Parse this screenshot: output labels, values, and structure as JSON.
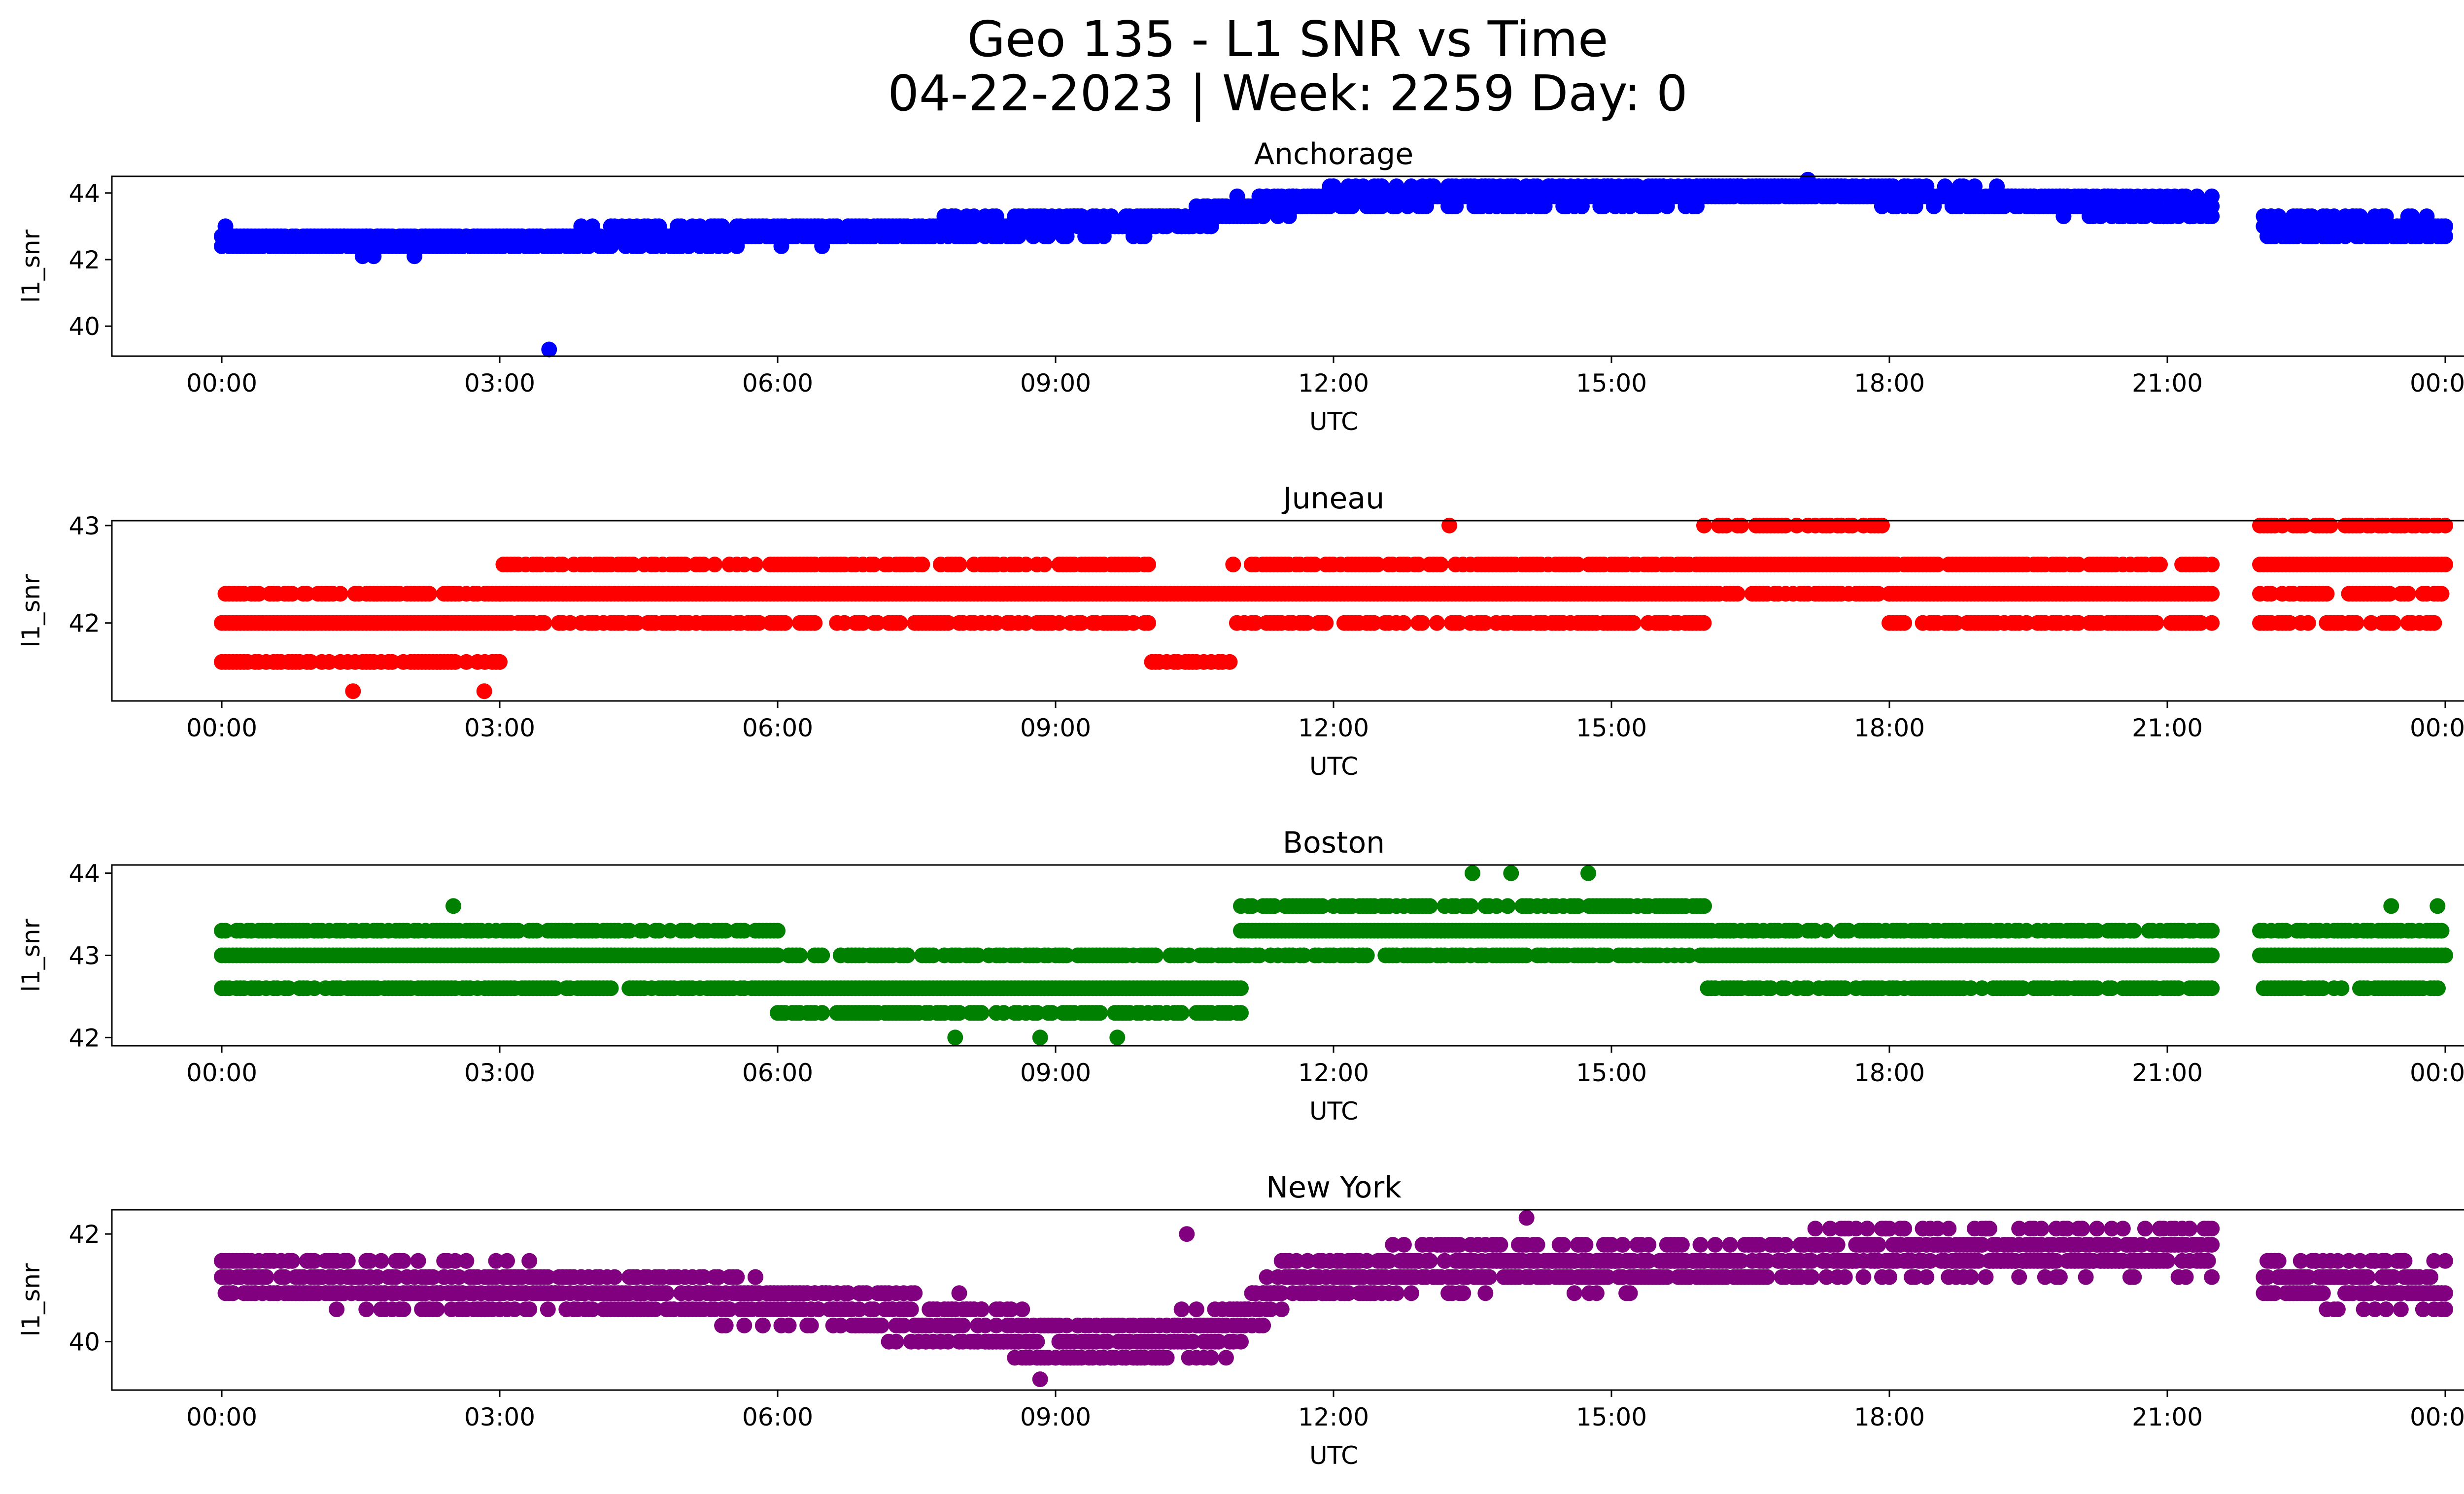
{
  "figure": {
    "title_line1": "Geo 135 - L1 SNR vs Time",
    "title_line2": "04-22-2023 | Week: 2259 Day: 0"
  },
  "chart_data": [
    {
      "type": "scatter",
      "title": "Anchorage",
      "xlabel": "UTC",
      "ylabel": "l1_snr",
      "color": "#0000ff",
      "xticks": [
        "00:00",
        "03:00",
        "06:00",
        "09:00",
        "12:00",
        "15:00",
        "18:00",
        "21:00",
        "00:00"
      ],
      "xlim": [
        "-01:12",
        "+01:12 next day"
      ],
      "ylim": [
        39.1,
        44.5
      ],
      "yticks": [
        40,
        42,
        44
      ],
      "gap": [
        "21:30",
        "22:00"
      ],
      "trend": [
        [
          "00:00",
          42.5
        ],
        [
          "02:00",
          42.4
        ],
        [
          "04:00",
          42.5
        ],
        [
          "06:00",
          42.7
        ],
        [
          "08:00",
          42.8
        ],
        [
          "10:00",
          43.0
        ],
        [
          "11:30",
          43.6
        ],
        [
          "12:30",
          43.8
        ],
        [
          "15:00",
          43.8
        ],
        [
          "17:00",
          44.0
        ],
        [
          "19:00",
          43.7
        ],
        [
          "21:30",
          43.4
        ],
        [
          "22:00",
          42.9
        ],
        [
          "24:00",
          42.8
        ]
      ],
      "spread": 0.35,
      "outliers": [
        [
          "03:32",
          39.3
        ]
      ]
    },
    {
      "type": "scatter",
      "title": "Juneau",
      "xlabel": "UTC",
      "ylabel": "l1_snr",
      "color": "#ff0000",
      "xticks": [
        "00:00",
        "03:00",
        "06:00",
        "09:00",
        "12:00",
        "15:00",
        "18:00",
        "21:00",
        "00:00"
      ],
      "xlim": [
        "-01:12",
        "+01:12 next day"
      ],
      "ylim": [
        41.2,
        43.05
      ],
      "yticks": [
        42,
        43
      ],
      "gap": [
        "21:30",
        "22:00"
      ],
      "levels": [
        41.3,
        41.6,
        42.0,
        42.3,
        42.6,
        43.0
      ],
      "bands": [
        {
          "from": "00:00",
          "to": "03:00",
          "levels": [
            41.6,
            42.0,
            42.3
          ]
        },
        {
          "from": "03:00",
          "to": "10:00",
          "levels": [
            42.0,
            42.3,
            42.6
          ]
        },
        {
          "from": "10:00",
          "to": "10:55",
          "levels": [
            41.6,
            42.3
          ]
        },
        {
          "from": "10:55",
          "to": "16:00",
          "levels": [
            42.0,
            42.3,
            42.6
          ]
        },
        {
          "from": "16:00",
          "to": "18:00",
          "levels": [
            42.3,
            42.6,
            43.0
          ]
        },
        {
          "from": "18:00",
          "to": "21:30",
          "levels": [
            42.0,
            42.3,
            42.6
          ]
        },
        {
          "from": "22:00",
          "to": "24:00",
          "levels": [
            42.0,
            42.3,
            42.6,
            43.0
          ]
        }
      ],
      "outliers": [
        [
          "01:25",
          41.3
        ],
        [
          "02:50",
          41.3
        ],
        [
          "13:15",
          43.0
        ]
      ]
    },
    {
      "type": "scatter",
      "title": "Boston",
      "xlabel": "UTC",
      "ylabel": "l1_snr",
      "color": "#008000",
      "xticks": [
        "00:00",
        "03:00",
        "06:00",
        "09:00",
        "12:00",
        "15:00",
        "18:00",
        "21:00",
        "00:00"
      ],
      "xlim": [
        "-01:12",
        "+01:12 next day"
      ],
      "ylim": [
        41.9,
        44.1
      ],
      "yticks": [
        42,
        43,
        44
      ],
      "gap": [
        "21:30",
        "22:00"
      ],
      "levels": [
        42.0,
        42.3,
        42.6,
        43.0,
        43.3,
        43.6,
        44.0
      ],
      "bands": [
        {
          "from": "00:00",
          "to": "06:00",
          "levels": [
            42.6,
            43.0,
            43.3
          ]
        },
        {
          "from": "06:00",
          "to": "11:00",
          "levels": [
            42.3,
            42.6,
            43.0
          ]
        },
        {
          "from": "11:00",
          "to": "13:00",
          "levels": [
            43.0,
            43.3,
            43.6
          ]
        },
        {
          "from": "13:00",
          "to": "16:00",
          "levels": [
            43.0,
            43.3,
            43.6
          ]
        },
        {
          "from": "16:00",
          "to": "21:30",
          "levels": [
            42.6,
            43.0,
            43.3
          ]
        },
        {
          "from": "22:00",
          "to": "24:00",
          "levels": [
            42.6,
            43.0,
            43.3
          ]
        }
      ],
      "outliers": [
        [
          "02:30",
          43.6
        ],
        [
          "07:55",
          42.0
        ],
        [
          "08:50",
          42.0
        ],
        [
          "09:40",
          42.0
        ],
        [
          "13:30",
          44.0
        ],
        [
          "13:55",
          44.0
        ],
        [
          "14:45",
          44.0
        ],
        [
          "23:25",
          43.6
        ],
        [
          "23:55",
          43.6
        ]
      ]
    },
    {
      "type": "scatter",
      "title": "New York",
      "xlabel": "UTC",
      "ylabel": "l1_snr",
      "color": "#800080",
      "xticks": [
        "00:00",
        "03:00",
        "06:00",
        "09:00",
        "12:00",
        "15:00",
        "18:00",
        "21:00",
        "00:00"
      ],
      "xlim": [
        "-01:12",
        "+01:12 next day"
      ],
      "ylim": [
        39.1,
        42.45
      ],
      "yticks": [
        40,
        42
      ],
      "gap": [
        "21:30",
        "22:00"
      ],
      "trend": [
        [
          "00:00",
          41.1
        ],
        [
          "03:00",
          40.9
        ],
        [
          "06:00",
          40.6
        ],
        [
          "08:00",
          40.3
        ],
        [
          "09:00",
          39.9
        ],
        [
          "10:45",
          40.0
        ],
        [
          "11:30",
          41.0
        ],
        [
          "13:00",
          41.3
        ],
        [
          "15:00",
          41.3
        ],
        [
          "18:00",
          41.6
        ],
        [
          "21:30",
          41.6
        ],
        [
          "22:00",
          41.1
        ],
        [
          "24:00",
          40.9
        ]
      ],
      "spread": 0.5,
      "outliers": [
        [
          "08:50",
          39.3
        ],
        [
          "10:25",
          42.0
        ],
        [
          "14:05",
          42.3
        ]
      ]
    }
  ]
}
